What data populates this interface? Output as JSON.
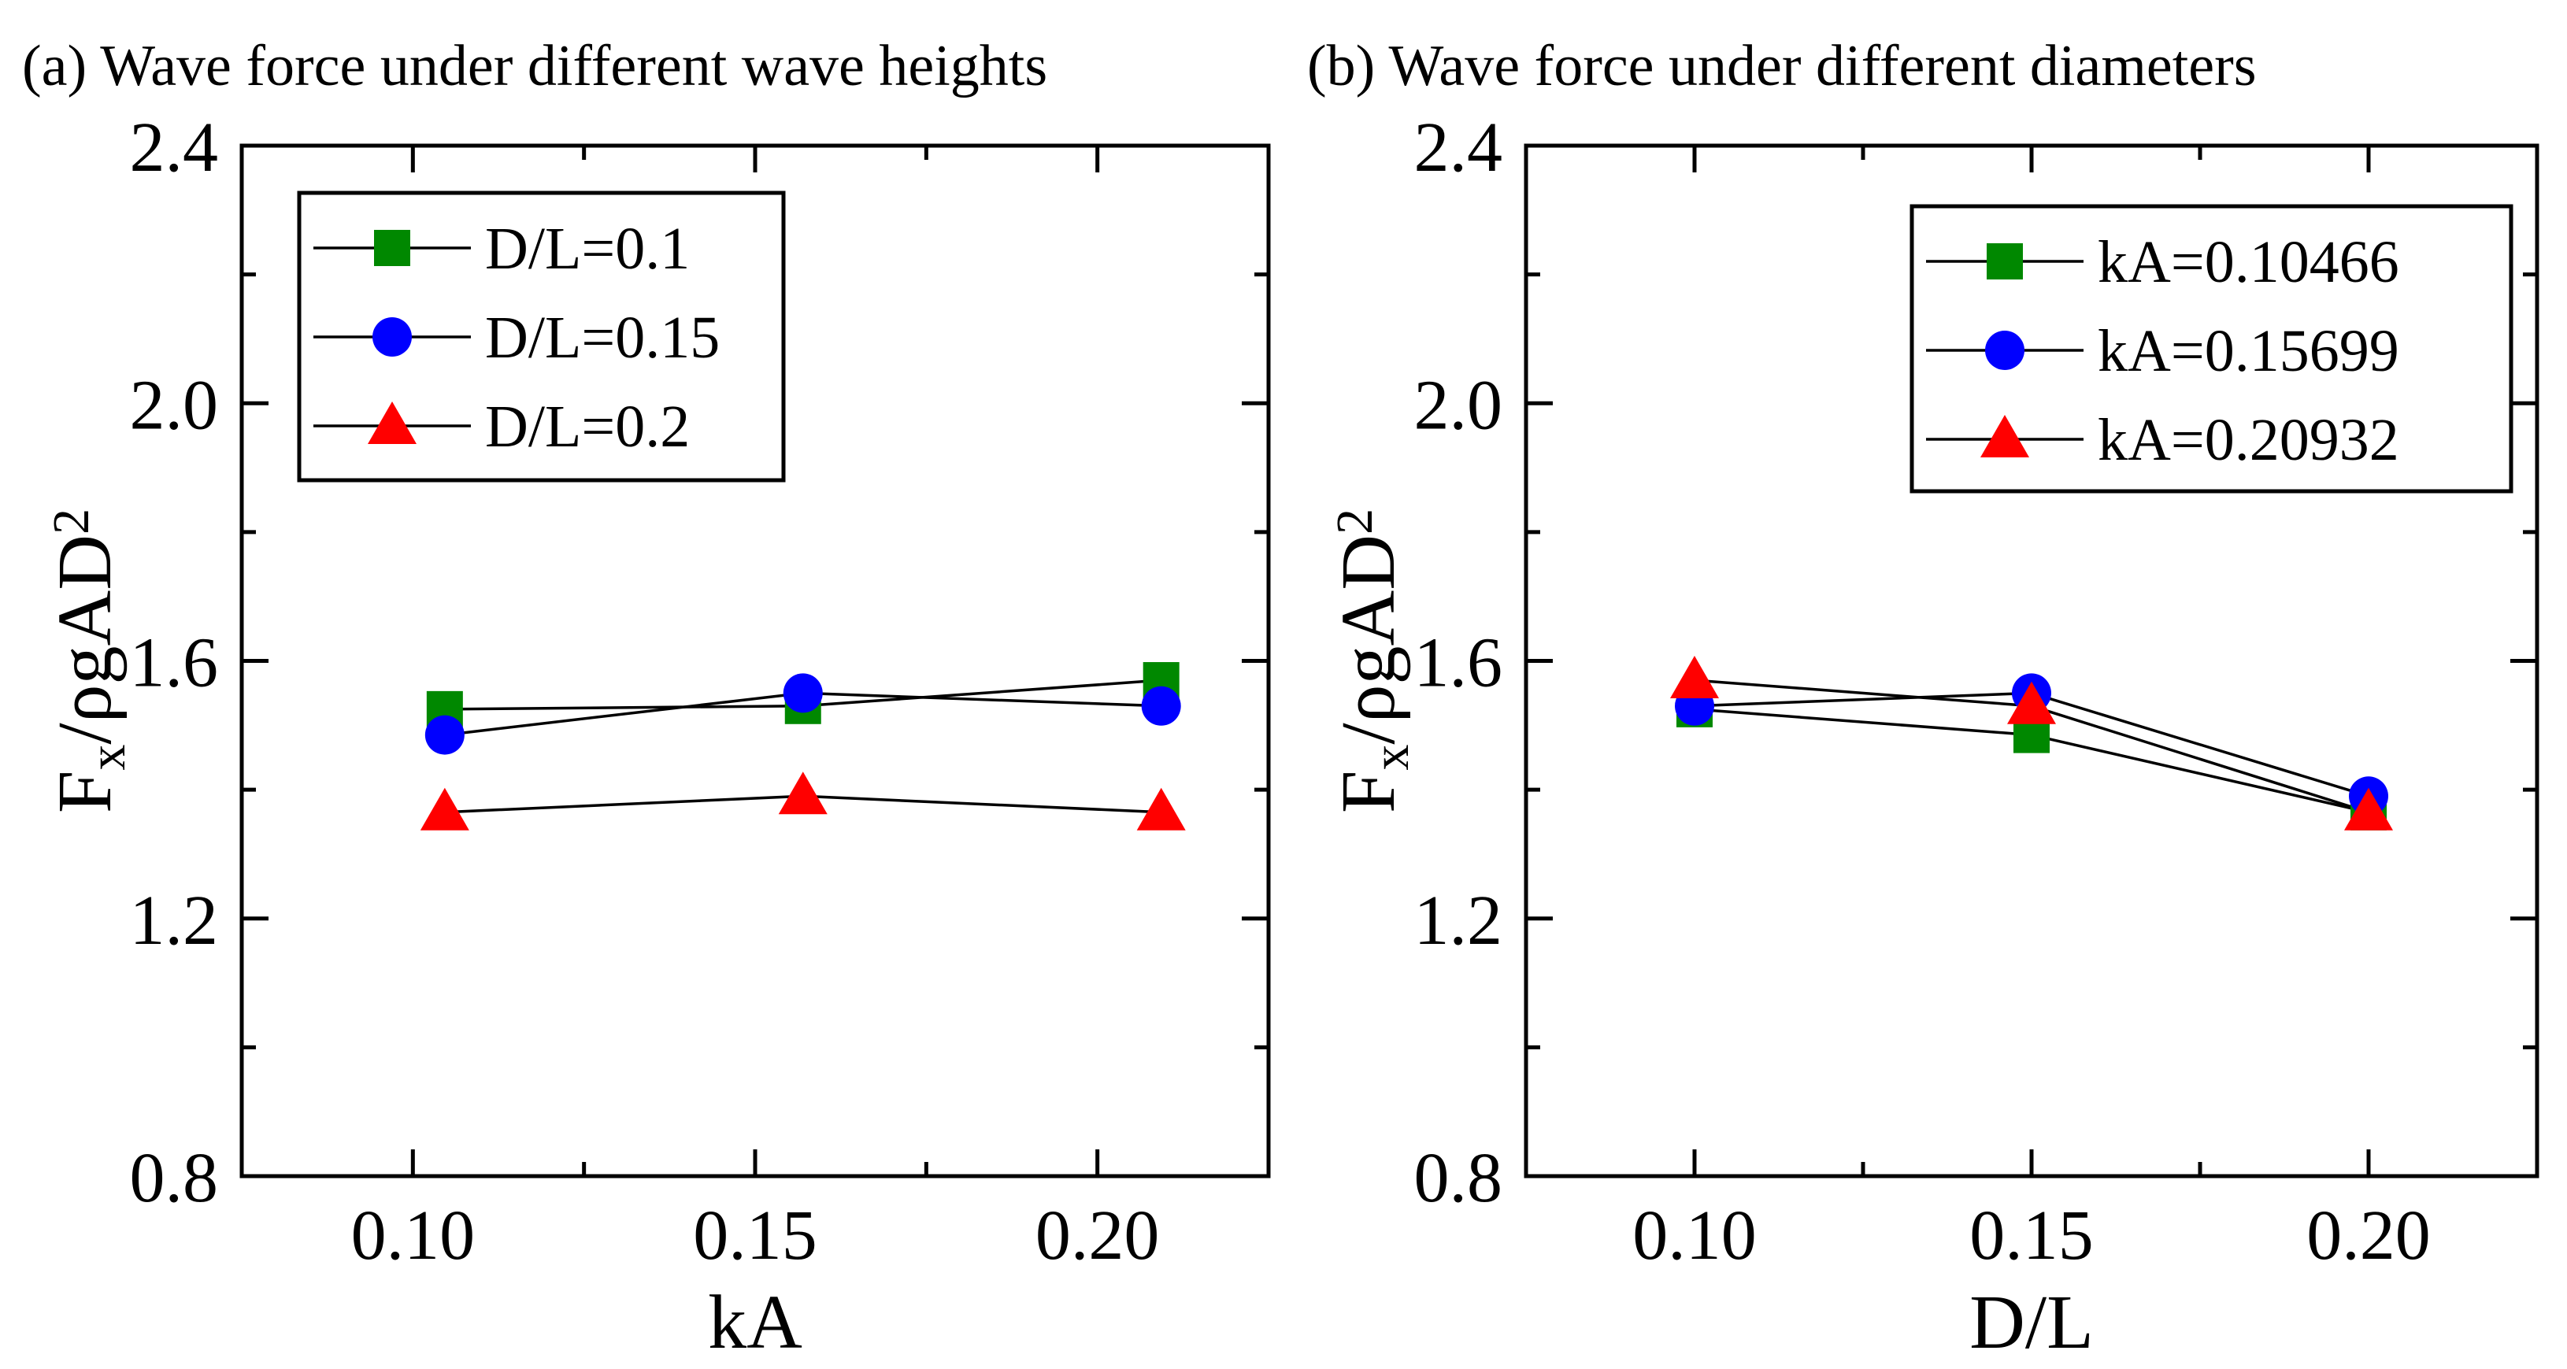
{
  "chart_data": [
    {
      "type": "line",
      "title": "(a) Wave force under different wave heights",
      "xlabel": "kA",
      "ylabel": {
        "main": "F",
        "sub": "x",
        "rest": "/ρgAD",
        "sup": "2"
      },
      "xlim": [
        0.075,
        0.225
      ],
      "ylim": [
        0.8,
        2.4
      ],
      "xticks": [
        "0.10",
        "0.15",
        "0.20"
      ],
      "xtick_values": [
        0.1,
        0.15,
        0.2
      ],
      "yticks": [
        "0.8",
        "1.2",
        "1.6",
        "2.0",
        "2.4"
      ],
      "ytick_values": [
        0.8,
        1.2,
        1.6,
        2.0,
        2.4
      ],
      "legend_position": "top-left",
      "x": [
        0.10466,
        0.15699,
        0.20932
      ],
      "series": [
        {
          "name": "D/L=0.1",
          "marker": "square",
          "color": "#008800",
          "values": [
            1.525,
            1.53,
            1.57
          ]
        },
        {
          "name": "D/L=0.15",
          "marker": "circle",
          "color": "#0000ff",
          "values": [
            1.485,
            1.55,
            1.53
          ]
        },
        {
          "name": "D/L=0.2",
          "marker": "triangle",
          "color": "#ff0000",
          "values": [
            1.365,
            1.39,
            1.365
          ]
        }
      ]
    },
    {
      "type": "line",
      "title": "(b) Wave force under different diameters",
      "xlabel": "D/L",
      "ylabel": {
        "main": "F",
        "sub": "x",
        "rest": "/ρgAD",
        "sup": "2"
      },
      "xlim": [
        0.075,
        0.225
      ],
      "ylim": [
        0.8,
        2.4
      ],
      "xticks": [
        "0.10",
        "0.15",
        "0.20"
      ],
      "xtick_values": [
        0.1,
        0.15,
        0.2
      ],
      "yticks": [
        "0.8",
        "1.2",
        "1.6",
        "2.0",
        "2.4"
      ],
      "ytick_values": [
        0.8,
        1.2,
        1.6,
        2.0,
        2.4
      ],
      "legend_position": "top-right",
      "x": [
        0.1,
        0.15,
        0.2
      ],
      "series": [
        {
          "name": "kA=0.10466",
          "marker": "square",
          "color": "#008800",
          "values": [
            1.525,
            1.485,
            1.365
          ]
        },
        {
          "name": "kA=0.15699",
          "marker": "circle",
          "color": "#0000ff",
          "values": [
            1.53,
            1.55,
            1.39
          ]
        },
        {
          "name": "kA=0.20932",
          "marker": "triangle",
          "color": "#ff0000",
          "values": [
            1.57,
            1.53,
            1.365
          ]
        }
      ]
    }
  ]
}
